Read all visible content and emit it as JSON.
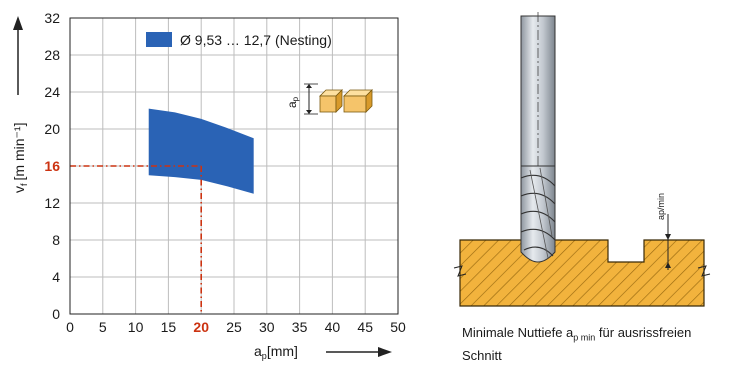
{
  "chart_data": {
    "type": "area",
    "xlabel": "a",
    "xlabel_sub": "p",
    "xlabel_unit": "[mm]",
    "ylabel": "v",
    "ylabel_sub": "f",
    "ylabel_unit": "[m min⁻¹]",
    "xlim": [
      0,
      50
    ],
    "ylim": [
      0,
      32
    ],
    "x_ticks": [
      "0",
      "5",
      "10",
      "15",
      "20",
      "25",
      "30",
      "35",
      "40",
      "45",
      "50"
    ],
    "y_ticks": [
      "0",
      "4",
      "8",
      "12",
      "16",
      "20",
      "24",
      "28",
      "32"
    ],
    "grid": true,
    "legend": {
      "label": "Ø 9,53 … 12,7 (Nesting)",
      "placement": "top-right",
      "color": "#2a63b5"
    },
    "series": [
      {
        "name": "Ø 9,53 … 12,7 (Nesting)",
        "color": "#2a63b5",
        "upper": [
          [
            12,
            22.2
          ],
          [
            16,
            21.8
          ],
          [
            20,
            21.1
          ],
          [
            24,
            20.1
          ],
          [
            28,
            19.0
          ]
        ],
        "lower": [
          [
            12,
            15.0
          ],
          [
            16,
            14.8
          ],
          [
            20,
            14.5
          ],
          [
            24,
            13.8
          ],
          [
            28,
            13.0
          ]
        ]
      }
    ],
    "reference": {
      "x": 20,
      "y": 16,
      "x_label": "20",
      "y_label": "16",
      "color": "#cc3311"
    },
    "inset_label": "a",
    "inset_label_sub": "p"
  },
  "diagram": {
    "dimension_label": "ap/min",
    "caption_text": "Minimale Nuttiefe a",
    "caption_sub": "p min",
    "caption_rest": " für ausrissfreien",
    "caption_line2": "Schnitt",
    "colors": {
      "workpiece": "#f2b33d",
      "hatch": "#9a6a10",
      "tool": "#c9cfd6"
    }
  }
}
